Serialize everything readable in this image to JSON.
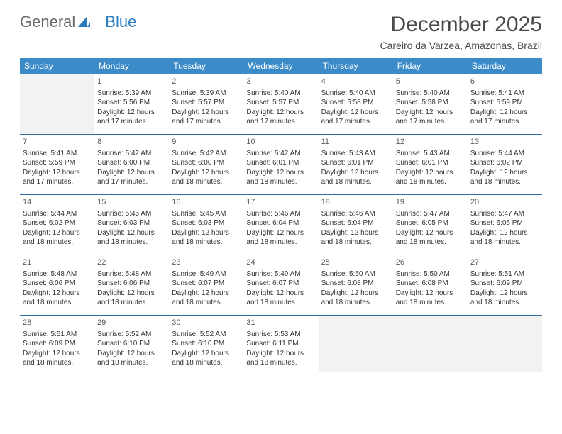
{
  "logo": {
    "text1": "General",
    "text2": "Blue"
  },
  "title": "December 2025",
  "location": "Careiro da Varzea, Amazonas, Brazil",
  "colors": {
    "header_bg": "#3b8bc9",
    "header_text": "#ffffff",
    "border": "#2e6ca3",
    "empty_bg": "#f2f2f0",
    "text": "#333333",
    "logo_gray": "#6b6b6b",
    "logo_blue": "#2b7bbf"
  },
  "weekdays": [
    "Sunday",
    "Monday",
    "Tuesday",
    "Wednesday",
    "Thursday",
    "Friday",
    "Saturday"
  ],
  "weeks": [
    [
      null,
      {
        "n": "1",
        "sr": "5:39 AM",
        "ss": "5:56 PM",
        "dl": "12 hours and 17 minutes."
      },
      {
        "n": "2",
        "sr": "5:39 AM",
        "ss": "5:57 PM",
        "dl": "12 hours and 17 minutes."
      },
      {
        "n": "3",
        "sr": "5:40 AM",
        "ss": "5:57 PM",
        "dl": "12 hours and 17 minutes."
      },
      {
        "n": "4",
        "sr": "5:40 AM",
        "ss": "5:58 PM",
        "dl": "12 hours and 17 minutes."
      },
      {
        "n": "5",
        "sr": "5:40 AM",
        "ss": "5:58 PM",
        "dl": "12 hours and 17 minutes."
      },
      {
        "n": "6",
        "sr": "5:41 AM",
        "ss": "5:59 PM",
        "dl": "12 hours and 17 minutes."
      }
    ],
    [
      {
        "n": "7",
        "sr": "5:41 AM",
        "ss": "5:59 PM",
        "dl": "12 hours and 17 minutes."
      },
      {
        "n": "8",
        "sr": "5:42 AM",
        "ss": "6:00 PM",
        "dl": "12 hours and 17 minutes."
      },
      {
        "n": "9",
        "sr": "5:42 AM",
        "ss": "6:00 PM",
        "dl": "12 hours and 18 minutes."
      },
      {
        "n": "10",
        "sr": "5:42 AM",
        "ss": "6:01 PM",
        "dl": "12 hours and 18 minutes."
      },
      {
        "n": "11",
        "sr": "5:43 AM",
        "ss": "6:01 PM",
        "dl": "12 hours and 18 minutes."
      },
      {
        "n": "12",
        "sr": "5:43 AM",
        "ss": "6:01 PM",
        "dl": "12 hours and 18 minutes."
      },
      {
        "n": "13",
        "sr": "5:44 AM",
        "ss": "6:02 PM",
        "dl": "12 hours and 18 minutes."
      }
    ],
    [
      {
        "n": "14",
        "sr": "5:44 AM",
        "ss": "6:02 PM",
        "dl": "12 hours and 18 minutes."
      },
      {
        "n": "15",
        "sr": "5:45 AM",
        "ss": "6:03 PM",
        "dl": "12 hours and 18 minutes."
      },
      {
        "n": "16",
        "sr": "5:45 AM",
        "ss": "6:03 PM",
        "dl": "12 hours and 18 minutes."
      },
      {
        "n": "17",
        "sr": "5:46 AM",
        "ss": "6:04 PM",
        "dl": "12 hours and 18 minutes."
      },
      {
        "n": "18",
        "sr": "5:46 AM",
        "ss": "6:04 PM",
        "dl": "12 hours and 18 minutes."
      },
      {
        "n": "19",
        "sr": "5:47 AM",
        "ss": "6:05 PM",
        "dl": "12 hours and 18 minutes."
      },
      {
        "n": "20",
        "sr": "5:47 AM",
        "ss": "6:05 PM",
        "dl": "12 hours and 18 minutes."
      }
    ],
    [
      {
        "n": "21",
        "sr": "5:48 AM",
        "ss": "6:06 PM",
        "dl": "12 hours and 18 minutes."
      },
      {
        "n": "22",
        "sr": "5:48 AM",
        "ss": "6:06 PM",
        "dl": "12 hours and 18 minutes."
      },
      {
        "n": "23",
        "sr": "5:49 AM",
        "ss": "6:07 PM",
        "dl": "12 hours and 18 minutes."
      },
      {
        "n": "24",
        "sr": "5:49 AM",
        "ss": "6:07 PM",
        "dl": "12 hours and 18 minutes."
      },
      {
        "n": "25",
        "sr": "5:50 AM",
        "ss": "6:08 PM",
        "dl": "12 hours and 18 minutes."
      },
      {
        "n": "26",
        "sr": "5:50 AM",
        "ss": "6:08 PM",
        "dl": "12 hours and 18 minutes."
      },
      {
        "n": "27",
        "sr": "5:51 AM",
        "ss": "6:09 PM",
        "dl": "12 hours and 18 minutes."
      }
    ],
    [
      {
        "n": "28",
        "sr": "5:51 AM",
        "ss": "6:09 PM",
        "dl": "12 hours and 18 minutes."
      },
      {
        "n": "29",
        "sr": "5:52 AM",
        "ss": "6:10 PM",
        "dl": "12 hours and 18 minutes."
      },
      {
        "n": "30",
        "sr": "5:52 AM",
        "ss": "6:10 PM",
        "dl": "12 hours and 18 minutes."
      },
      {
        "n": "31",
        "sr": "5:53 AM",
        "ss": "6:11 PM",
        "dl": "12 hours and 18 minutes."
      },
      null,
      null,
      null
    ]
  ],
  "labels": {
    "sunrise": "Sunrise:",
    "sunset": "Sunset:",
    "daylight": "Daylight:"
  }
}
